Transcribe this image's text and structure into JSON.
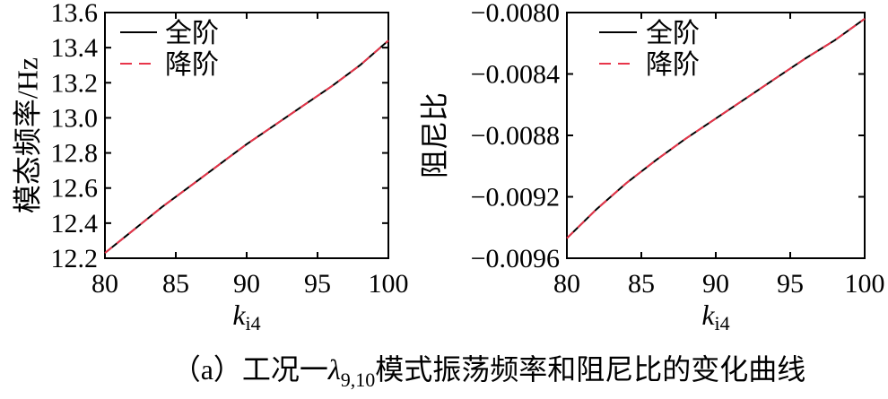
{
  "caption": {
    "prefix": "（a）工况一",
    "lambda": "λ",
    "lambda_sub": "9,10",
    "suffix": "模式振荡频率和阻尼比的变化曲线"
  },
  "legend": {
    "full": "全阶",
    "reduced": "降阶"
  },
  "colors": {
    "full": "#000000",
    "reduced": "#e8354a"
  },
  "chart_data": [
    {
      "type": "line",
      "title": "",
      "xlabel": "k",
      "xlabel_sub": "i4",
      "ylabel": "模态频率/Hz",
      "xlim": [
        80,
        100
      ],
      "ylim": [
        12.2,
        13.6
      ],
      "x_ticks": [
        80,
        85,
        90,
        95,
        100
      ],
      "x_tick_labels": [
        "80",
        "85",
        "90",
        "95",
        "100"
      ],
      "y_ticks": [
        12.2,
        12.4,
        12.6,
        12.8,
        13.0,
        13.2,
        13.4,
        13.6
      ],
      "y_tick_labels": [
        "12.2",
        "12.4",
        "12.6",
        "12.8",
        "13.0",
        "13.2",
        "13.4",
        "13.6"
      ],
      "grid": false,
      "legend_position": "top-left",
      "x": [
        80,
        82,
        84,
        86,
        88,
        90,
        92,
        94,
        96,
        98,
        100
      ],
      "series": [
        {
          "name": "全阶",
          "style": "solid",
          "values": [
            12.23,
            12.36,
            12.49,
            12.61,
            12.73,
            12.85,
            12.96,
            13.07,
            13.18,
            13.3,
            13.44
          ]
        },
        {
          "name": "降阶",
          "style": "dashed",
          "values": [
            12.23,
            12.36,
            12.49,
            12.61,
            12.73,
            12.85,
            12.96,
            13.07,
            13.18,
            13.3,
            13.44
          ]
        }
      ]
    },
    {
      "type": "line",
      "title": "",
      "xlabel": "k",
      "xlabel_sub": "i4",
      "ylabel": "阻尼比",
      "xlim": [
        80,
        100
      ],
      "ylim": [
        -0.0096,
        -0.008
      ],
      "x_ticks": [
        80,
        85,
        90,
        95,
        100
      ],
      "x_tick_labels": [
        "80",
        "85",
        "90",
        "95",
        "100"
      ],
      "y_ticks": [
        -0.0096,
        -0.0092,
        -0.0088,
        -0.0084,
        -0.008
      ],
      "y_tick_labels": [
        "−0.0096",
        "−0.0092",
        "−0.0088",
        "−0.0084",
        "−0.0080"
      ],
      "grid": false,
      "legend_position": "top-left",
      "x": [
        80,
        82,
        84,
        86,
        88,
        90,
        92,
        94,
        96,
        98,
        100
      ],
      "series": [
        {
          "name": "全阶",
          "style": "solid",
          "values": [
            -0.00947,
            -0.00928,
            -0.00911,
            -0.00896,
            -0.00882,
            -0.00869,
            -0.00856,
            -0.00843,
            -0.0083,
            -0.00818,
            -0.00804
          ]
        },
        {
          "name": "降阶",
          "style": "dashed",
          "values": [
            -0.00947,
            -0.00928,
            -0.00911,
            -0.00896,
            -0.00882,
            -0.00869,
            -0.00856,
            -0.00843,
            -0.0083,
            -0.00818,
            -0.00804
          ]
        }
      ]
    }
  ]
}
